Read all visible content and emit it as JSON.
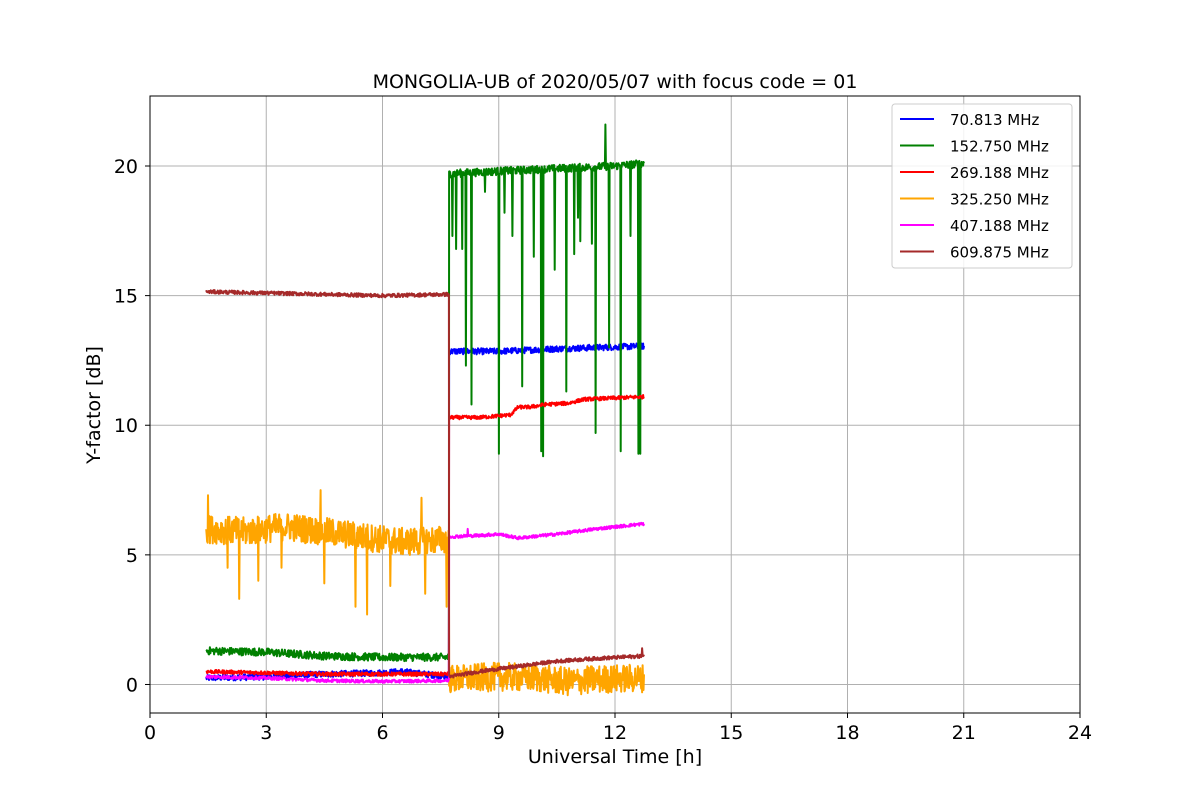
{
  "chart_data": {
    "type": "line",
    "title": "MONGOLIA-UB of 2020/05/07 with focus code = 01",
    "xlabel": "Universal Time [h]",
    "ylabel": "Y-factor [dB]",
    "xlim": [
      0,
      24
    ],
    "ylim": [
      -1.1,
      22.7
    ],
    "xticks": [
      0,
      3,
      6,
      9,
      12,
      15,
      18,
      21,
      24
    ],
    "yticks": [
      0,
      5,
      10,
      15,
      20
    ],
    "grid": true,
    "legend_position": "top-right",
    "switch_time": 7.72,
    "series": [
      {
        "name": " 70.813 MHz",
        "color": "#0000ff",
        "noise": 0.12,
        "points": [
          [
            1.45,
            0.25
          ],
          [
            3.0,
            0.3
          ],
          [
            4.5,
            0.4
          ],
          [
            6.0,
            0.45
          ],
          [
            6.5,
            0.5
          ],
          [
            7.72,
            0.3
          ],
          [
            7.72,
            12.85
          ],
          [
            9.0,
            12.85
          ],
          [
            10.5,
            12.95
          ],
          [
            12.75,
            13.05
          ]
        ]
      },
      {
        "name": "152.750 MHz",
        "color": "#008000",
        "noise": 0.15,
        "points": [
          [
            1.45,
            1.3
          ],
          [
            3.0,
            1.25
          ],
          [
            4.5,
            1.1
          ],
          [
            6.0,
            1.05
          ],
          [
            7.72,
            1.05
          ],
          [
            7.72,
            19.7
          ],
          [
            9.0,
            19.8
          ],
          [
            10.5,
            19.9
          ],
          [
            12.0,
            20.0
          ],
          [
            12.75,
            20.1
          ]
        ],
        "dips": [
          [
            7.8,
            17.3
          ],
          [
            7.9,
            16.8
          ],
          [
            8.05,
            16.8
          ],
          [
            8.15,
            12.3
          ],
          [
            8.3,
            10.8
          ],
          [
            8.65,
            19.0
          ],
          [
            9.0,
            8.9
          ],
          [
            9.15,
            18.2
          ],
          [
            9.35,
            17.3
          ],
          [
            9.6,
            11.5
          ],
          [
            9.9,
            16.5
          ],
          [
            10.1,
            9.0
          ],
          [
            10.15,
            8.8
          ],
          [
            10.45,
            16.0
          ],
          [
            10.75,
            11.3
          ],
          [
            10.95,
            16.6
          ],
          [
            11.05,
            18.0
          ],
          [
            11.1,
            17.1
          ],
          [
            11.4,
            17.0
          ],
          [
            11.5,
            9.7
          ],
          [
            11.85,
            13.0
          ],
          [
            12.15,
            9.0
          ],
          [
            12.4,
            17.3
          ],
          [
            12.6,
            8.9
          ],
          [
            12.65,
            8.9
          ]
        ],
        "spikes": [
          [
            11.75,
            21.6
          ]
        ]
      },
      {
        "name": "269.188 MHz",
        "color": "#ff0000",
        "noise": 0.07,
        "points": [
          [
            1.45,
            0.5
          ],
          [
            3.0,
            0.45
          ],
          [
            4.5,
            0.4
          ],
          [
            6.0,
            0.4
          ],
          [
            7.72,
            0.4
          ],
          [
            7.72,
            10.3
          ],
          [
            8.5,
            10.3
          ],
          [
            9.3,
            10.4
          ],
          [
            9.5,
            10.7
          ],
          [
            9.8,
            10.7
          ],
          [
            10.2,
            10.8
          ],
          [
            10.8,
            10.85
          ],
          [
            11.2,
            11.0
          ],
          [
            12.75,
            11.1
          ]
        ]
      },
      {
        "name": "325.250 MHz",
        "color": "#ffa500",
        "noise": 0.55,
        "points": [
          [
            1.45,
            6.0
          ],
          [
            2.5,
            5.9
          ],
          [
            3.5,
            6.1
          ],
          [
            4.5,
            5.9
          ],
          [
            5.5,
            5.7
          ],
          [
            6.5,
            5.5
          ],
          [
            7.72,
            5.6
          ],
          [
            7.72,
            0.2
          ],
          [
            9.0,
            0.3
          ],
          [
            10.0,
            0.25
          ],
          [
            10.8,
            0.1
          ],
          [
            11.5,
            0.2
          ],
          [
            12.75,
            0.25
          ]
        ],
        "dips": [
          [
            2.0,
            4.5
          ],
          [
            2.3,
            3.3
          ],
          [
            2.8,
            4.0
          ],
          [
            3.4,
            4.5
          ],
          [
            4.5,
            3.9
          ],
          [
            5.3,
            3.0
          ],
          [
            5.6,
            2.7
          ],
          [
            6.2,
            3.8
          ],
          [
            7.1,
            3.5
          ],
          [
            7.65,
            3.0
          ]
        ],
        "spikes": [
          [
            1.5,
            7.3
          ],
          [
            4.4,
            7.5
          ],
          [
            7.0,
            7.2
          ]
        ]
      },
      {
        "name": "407.188 MHz",
        "color": "#ff00ff",
        "noise": 0.06,
        "points": [
          [
            1.45,
            0.3
          ],
          [
            3.0,
            0.25
          ],
          [
            4.5,
            0.15
          ],
          [
            6.0,
            0.12
          ],
          [
            7.72,
            0.15
          ],
          [
            7.72,
            5.7
          ],
          [
            8.5,
            5.75
          ],
          [
            9.0,
            5.8
          ],
          [
            9.5,
            5.65
          ],
          [
            10.5,
            5.8
          ],
          [
            11.5,
            6.0
          ],
          [
            12.75,
            6.2
          ]
        ],
        "spikes": [
          [
            8.2,
            6.0
          ]
        ]
      },
      {
        "name": "609.875 MHz",
        "color": "#a52a2a",
        "noise": 0.07,
        "points": [
          [
            1.45,
            15.15
          ],
          [
            3.0,
            15.1
          ],
          [
            4.5,
            15.05
          ],
          [
            6.0,
            15.0
          ],
          [
            7.72,
            15.05
          ],
          [
            7.72,
            0.3
          ],
          [
            8.5,
            0.5
          ],
          [
            9.5,
            0.7
          ],
          [
            10.5,
            0.9
          ],
          [
            11.5,
            1.0
          ],
          [
            12.75,
            1.1
          ]
        ],
        "spikes": [
          [
            12.7,
            1.4
          ]
        ]
      }
    ]
  }
}
